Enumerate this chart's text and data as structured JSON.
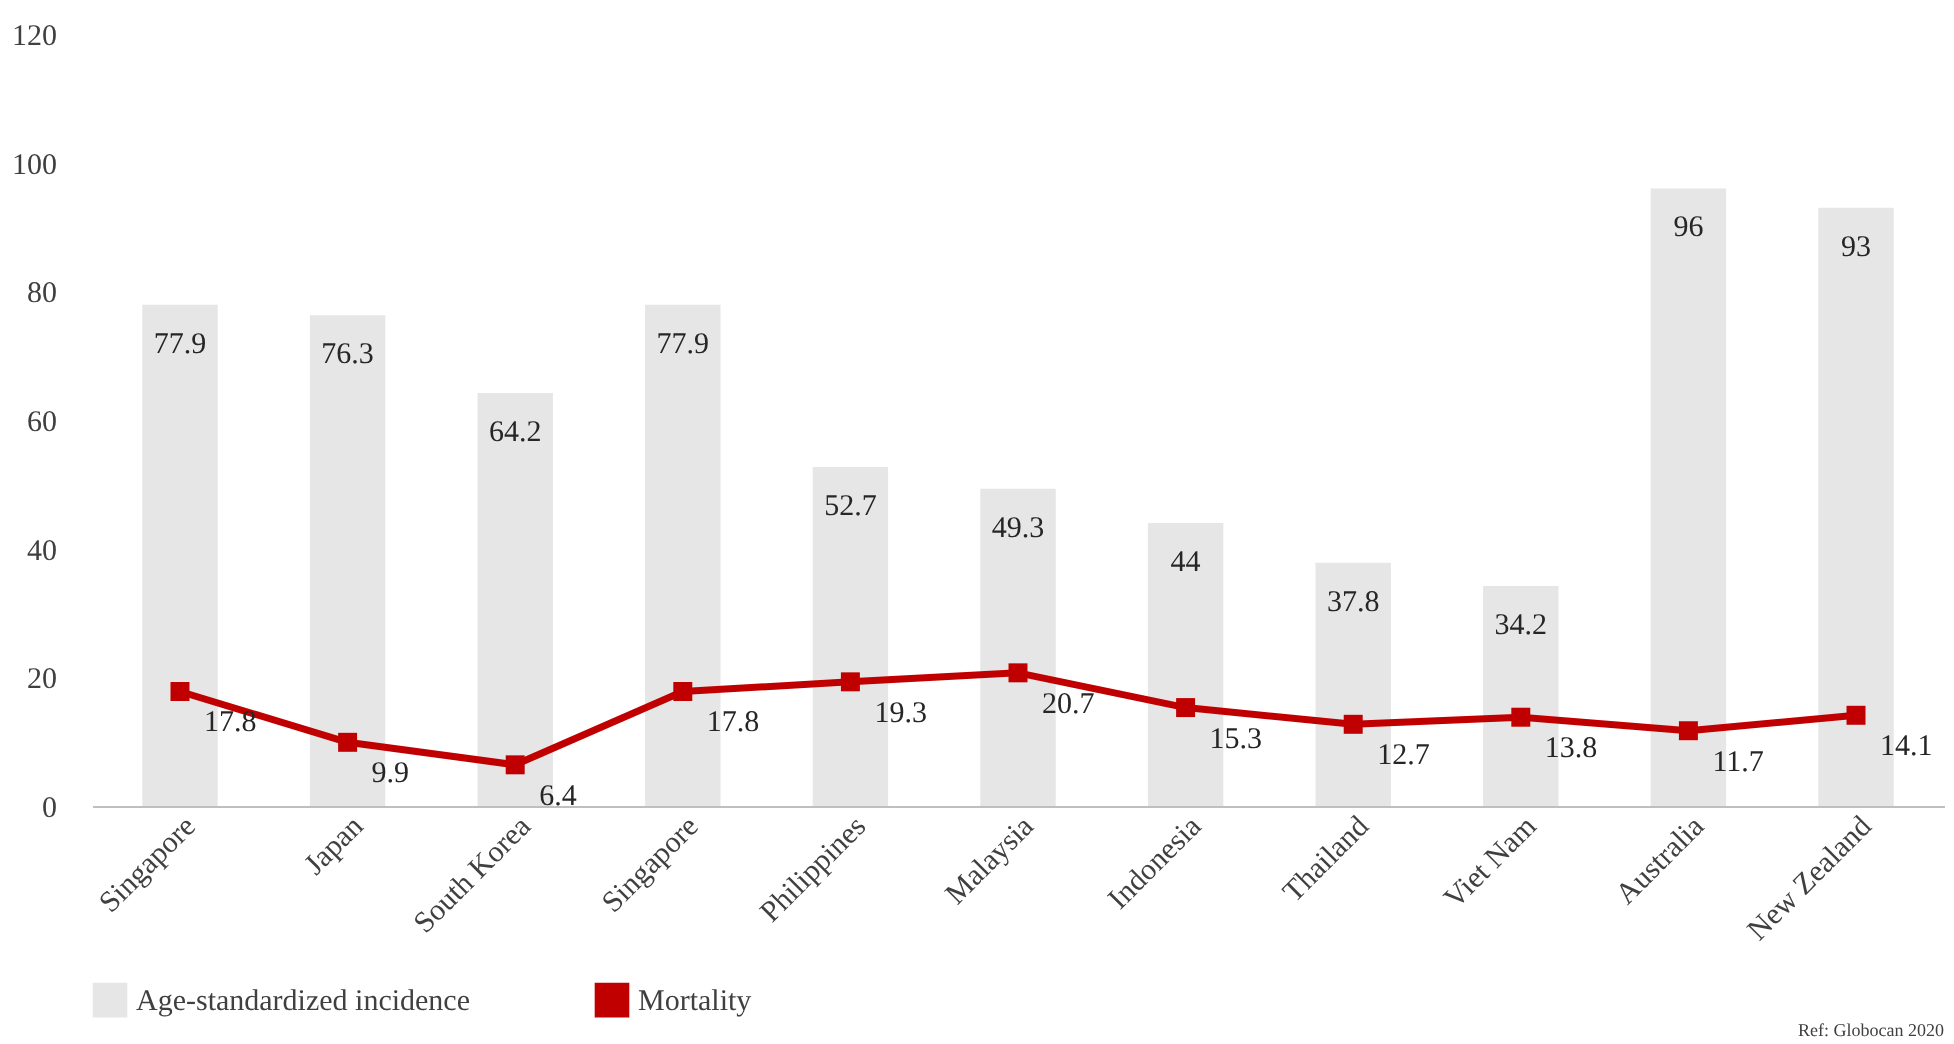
{
  "chart_data": {
    "type": "bar",
    "categories": [
      "Singapore",
      "Japan",
      "South Korea",
      "Singapore",
      "Philippines",
      "Malaysia",
      "Indonesia",
      "Thailand",
      "Viet Nam",
      "Australia",
      "New Zealand"
    ],
    "series": [
      {
        "name": "Age-standardized incidence",
        "color": "#e6e6e6",
        "values": [
          77.9,
          76.3,
          64.2,
          77.9,
          52.7,
          49.3,
          44,
          37.8,
          34.2,
          96,
          93
        ]
      },
      {
        "name": "Mortality",
        "type": "line",
        "color": "#c00000",
        "marker": "square",
        "line_style": "solid",
        "values": [
          17.8,
          9.9,
          6.4,
          17.8,
          19.3,
          20.7,
          15.3,
          12.7,
          13.8,
          11.7,
          14.1
        ]
      }
    ],
    "ylim": [
      0,
      120
    ],
    "yticks": [
      0,
      20,
      40,
      60,
      80,
      100,
      120
    ],
    "grid": false,
    "legend": "bottom",
    "data_labels": true,
    "annotations": [
      "Ref: Globocan 2020"
    ]
  }
}
